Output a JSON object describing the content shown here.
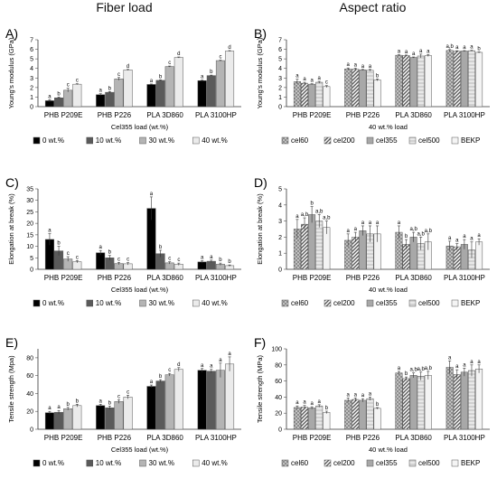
{
  "column_titles": {
    "left": "Fiber load",
    "right": "Aspect ratio"
  },
  "chart_data": [
    {
      "panel": "A)",
      "type": "bar",
      "ylabel": "Young's modulus (GPa)",
      "xlabel": "Cel355 load (wt.%)",
      "ylim": [
        0,
        7
      ],
      "yticks": [
        0,
        1,
        2,
        3,
        4,
        5,
        6,
        7
      ],
      "categories": [
        "PHB P209E",
        "PHB P226",
        "PLA 3D860",
        "PLA 3100HP"
      ],
      "series": [
        {
          "name": "0 wt.%",
          "color": "#000000",
          "pattern": "solid",
          "values": [
            0.62,
            1.25,
            2.32,
            2.72
          ],
          "errors": [
            0.1,
            0.1,
            0.05,
            0.05
          ],
          "letters": [
            "a",
            "a",
            "a",
            "a"
          ]
        },
        {
          "name": "10 wt.%",
          "color": "#5a5a5a",
          "pattern": "solid",
          "values": [
            0.92,
            1.5,
            2.75,
            3.25
          ],
          "errors": [
            0.08,
            0.08,
            0.05,
            0.05
          ],
          "letters": [
            "b",
            "b",
            "b",
            "b"
          ]
        },
        {
          "name": "30 wt.%",
          "color": "#b4b4b4",
          "pattern": "solid",
          "values": [
            1.72,
            2.9,
            4.2,
            4.82
          ],
          "errors": [
            0.2,
            0.15,
            0.05,
            0.05
          ],
          "letters": [
            "c",
            "c",
            "c",
            "c"
          ]
        },
        {
          "name": "40 wt.%",
          "color": "#ebebeb",
          "pattern": "solid",
          "values": [
            2.35,
            3.85,
            5.15,
            5.82
          ],
          "errors": [
            0.05,
            0.05,
            0.05,
            0.05
          ],
          "letters": [
            "c",
            "d",
            "d",
            "d"
          ]
        }
      ],
      "legend": "bottom"
    },
    {
      "panel": "B)",
      "type": "bar",
      "ylabel": "Young's modulus (GPa)",
      "xlabel": "40 wt.% load",
      "ylim": [
        0,
        7
      ],
      "yticks": [
        0,
        1,
        2,
        3,
        4,
        5,
        6,
        7
      ],
      "categories": [
        "PHB P209E",
        "PHB P226",
        "PLA 3D860",
        "PLA 3100HP"
      ],
      "series": [
        {
          "name": "cel60",
          "color": "#8c8c8c",
          "pattern": "dots",
          "values": [
            2.62,
            3.95,
            5.38,
            5.88
          ],
          "errors": [
            0.25,
            0.1,
            0.05,
            0.1
          ],
          "letters": [
            "a",
            "a",
            "a",
            "a,b"
          ]
        },
        {
          "name": "cel200",
          "color": "#5a5a5a",
          "pattern": "hatch",
          "values": [
            2.45,
            3.92,
            5.35,
            5.8
          ],
          "errors": [
            0.1,
            0.1,
            0.05,
            0.05
          ],
          "letters": [
            "a",
            "a",
            "a",
            "a"
          ]
        },
        {
          "name": "cel355",
          "color": "#a8a8a8",
          "pattern": "solid",
          "values": [
            2.35,
            3.85,
            5.15,
            5.82
          ],
          "errors": [
            0.05,
            0.05,
            0.05,
            0.05
          ],
          "letters": [
            "a",
            "a",
            "a",
            "a"
          ]
        },
        {
          "name": "cel500",
          "color": "#d0d0d0",
          "pattern": "hgrid",
          "values": [
            2.55,
            3.8,
            5.3,
            5.85
          ],
          "errors": [
            0.1,
            0.1,
            0.2,
            0.05
          ],
          "letters": [
            "a",
            "a",
            "a",
            "a"
          ]
        },
        {
          "name": "BEKP",
          "color": "#f4f4f4",
          "pattern": "solid",
          "values": [
            2.1,
            2.8,
            5.35,
            5.68
          ],
          "errors": [
            0.1,
            0.1,
            0.1,
            0.05
          ],
          "letters": [
            "c",
            "b",
            "a",
            "b"
          ]
        }
      ],
      "legend": "bottom"
    },
    {
      "panel": "C)",
      "type": "bar",
      "ylabel": "Elongation at break (%)",
      "xlabel": "Cel355 load (wt.%)",
      "ylim": [
        0,
        35
      ],
      "yticks": [
        0,
        5,
        10,
        15,
        20,
        25,
        30,
        35
      ],
      "categories": [
        "PHB P209E",
        "PHB P226",
        "PLA 3D860",
        "PLA 3100HP"
      ],
      "series": [
        {
          "name": "0 wt.%",
          "color": "#000000",
          "pattern": "solid",
          "values": [
            13,
            7.2,
            26.5,
            3.2
          ],
          "errors": [
            2.5,
            1,
            5,
            0.5
          ],
          "letters": [
            "a",
            "a",
            "a",
            "a"
          ]
        },
        {
          "name": "10 wt.%",
          "color": "#5a5a5a",
          "pattern": "solid",
          "values": [
            8,
            5,
            6.8,
            3.5
          ],
          "errors": [
            2,
            1,
            1.5,
            0.5
          ],
          "letters": [
            "b",
            "b",
            "b",
            "a"
          ]
        },
        {
          "name": "30 wt.%",
          "color": "#b4b4b4",
          "pattern": "solid",
          "values": [
            4.5,
            2.5,
            2.8,
            2.2
          ],
          "errors": [
            1,
            0.5,
            0.5,
            0.5
          ],
          "letters": [
            "c",
            "c",
            "c",
            "b"
          ]
        },
        {
          "name": "40 wt.%",
          "color": "#ebebeb",
          "pattern": "solid",
          "values": [
            3.3,
            2.4,
            2.2,
            1.6
          ],
          "errors": [
            0.5,
            0.5,
            0.5,
            0.3
          ],
          "letters": [
            "c",
            "c",
            "c",
            "b"
          ]
        }
      ],
      "legend": "bottom"
    },
    {
      "panel": "D)",
      "type": "bar",
      "ylabel": "Elongation at break (%)",
      "xlabel": "40 wt.% load",
      "ylim": [
        0,
        5
      ],
      "yticks": [
        0,
        1,
        2,
        3,
        4,
        5
      ],
      "categories": [
        "PHB P209E",
        "PHB P226",
        "PLA 3D860",
        "PLA 3100HP"
      ],
      "series": [
        {
          "name": "cel60",
          "color": "#8c8c8c",
          "pattern": "dots",
          "values": [
            2.5,
            1.8,
            2.3,
            1.45
          ],
          "errors": [
            0.6,
            0.4,
            0.4,
            0.3
          ],
          "letters": [
            "a",
            "a",
            "a",
            "a"
          ]
        },
        {
          "name": "cel200",
          "color": "#5a5a5a",
          "pattern": "hatch",
          "values": [
            2.8,
            2.0,
            1.55,
            1.4
          ],
          "errors": [
            0.4,
            0.3,
            0.3,
            0.2
          ],
          "letters": [
            "a,b",
            "a",
            "b",
            "a"
          ]
        },
        {
          "name": "cel355",
          "color": "#a8a8a8",
          "pattern": "solid",
          "values": [
            3.4,
            2.4,
            2.0,
            1.55
          ],
          "errors": [
            0.5,
            0.3,
            0.3,
            0.3
          ],
          "letters": [
            "b",
            "a",
            "a,b",
            "a"
          ]
        },
        {
          "name": "cel500",
          "color": "#d0d0d0",
          "pattern": "hgrid",
          "values": [
            3.0,
            2.2,
            1.6,
            1.2
          ],
          "errors": [
            0.4,
            0.5,
            0.4,
            0.5
          ],
          "letters": [
            "a,b",
            "a",
            "a,b",
            "a"
          ]
        },
        {
          "name": "BEKP",
          "color": "#f4f4f4",
          "pattern": "solid",
          "values": [
            2.6,
            2.2,
            1.7,
            1.7
          ],
          "errors": [
            0.4,
            0.5,
            0.5,
            0.2
          ],
          "letters": [
            "a,b",
            "a",
            "a,b",
            "a"
          ]
        }
      ],
      "legend": "bottom"
    },
    {
      "panel": "E)",
      "type": "bar",
      "ylabel": "Tensile strength (Mpa)",
      "xlabel": "Cel355 load (wt.%)",
      "ylim": [
        0,
        90
      ],
      "yticks": [
        0,
        20,
        40,
        60,
        80
      ],
      "categories": [
        "PHB P209E",
        "PHB P226",
        "PLA 3D860",
        "PLA 3100HP"
      ],
      "series": [
        {
          "name": "0 wt.%",
          "color": "#000000",
          "pattern": "solid",
          "values": [
            18.5,
            26.5,
            48,
            66
          ],
          "errors": [
            1.5,
            1.5,
            1.5,
            2
          ],
          "letters": [
            "a",
            "a",
            "a",
            "a"
          ]
        },
        {
          "name": "10 wt.%",
          "color": "#5a5a5a",
          "pattern": "solid",
          "values": [
            19,
            24,
            54,
            65
          ],
          "errors": [
            2,
            2,
            1.5,
            2
          ],
          "letters": [
            "a",
            "b",
            "b",
            "a"
          ]
        },
        {
          "name": "30 wt.%",
          "color": "#b4b4b4",
          "pattern": "solid",
          "values": [
            23,
            31,
            61,
            66
          ],
          "errors": [
            1.5,
            2,
            1.5,
            8
          ],
          "letters": [
            "b",
            "c",
            "c",
            "a"
          ]
        },
        {
          "name": "40 wt.%",
          "color": "#ebebeb",
          "pattern": "solid",
          "values": [
            26.5,
            36,
            67,
            73
          ],
          "errors": [
            1.5,
            2,
            2,
            8
          ],
          "letters": [
            "b",
            "c",
            "d",
            "a"
          ]
        }
      ],
      "legend": "bottom"
    },
    {
      "panel": "F)",
      "type": "bar",
      "ylabel": "Tensile strength (MPa)",
      "xlabel": "40 wt.% load",
      "ylim": [
        0,
        100
      ],
      "yticks": [
        0,
        20,
        40,
        60,
        80,
        100
      ],
      "categories": [
        "PHB P209E",
        "PHB P226",
        "PLA 3D860",
        "PLA 3100HP"
      ],
      "series": [
        {
          "name": "cel60",
          "color": "#8c8c8c",
          "pattern": "dots",
          "values": [
            27,
            36,
            70,
            77
          ],
          "errors": [
            2,
            3,
            2,
            8
          ],
          "letters": [
            "a",
            "a",
            "a",
            "a"
          ]
        },
        {
          "name": "cel200",
          "color": "#5a5a5a",
          "pattern": "hatch",
          "values": [
            27.5,
            37,
            63,
            68
          ],
          "errors": [
            2,
            2,
            2,
            6
          ],
          "letters": [
            "a",
            "a",
            "b",
            "a"
          ]
        },
        {
          "name": "cel355",
          "color": "#a8a8a8",
          "pattern": "solid",
          "values": [
            26.5,
            36,
            67,
            71
          ],
          "errors": [
            1.5,
            2,
            3,
            5
          ],
          "letters": [
            "a",
            "a",
            "a,b",
            "a"
          ]
        },
        {
          "name": "cel500",
          "color": "#d0d0d0",
          "pattern": "hgrid",
          "values": [
            29,
            38,
            66,
            73
          ],
          "errors": [
            1.5,
            2,
            5,
            7
          ],
          "letters": [
            "a",
            "a",
            "a,b",
            "a"
          ]
        },
        {
          "name": "BEKP",
          "color": "#f4f4f4",
          "pattern": "solid",
          "values": [
            21,
            26,
            67,
            75
          ],
          "errors": [
            1.5,
            1,
            5,
            5
          ],
          "letters": [
            "b",
            "b",
            "a,b",
            "a"
          ]
        }
      ],
      "legend": "bottom"
    }
  ]
}
